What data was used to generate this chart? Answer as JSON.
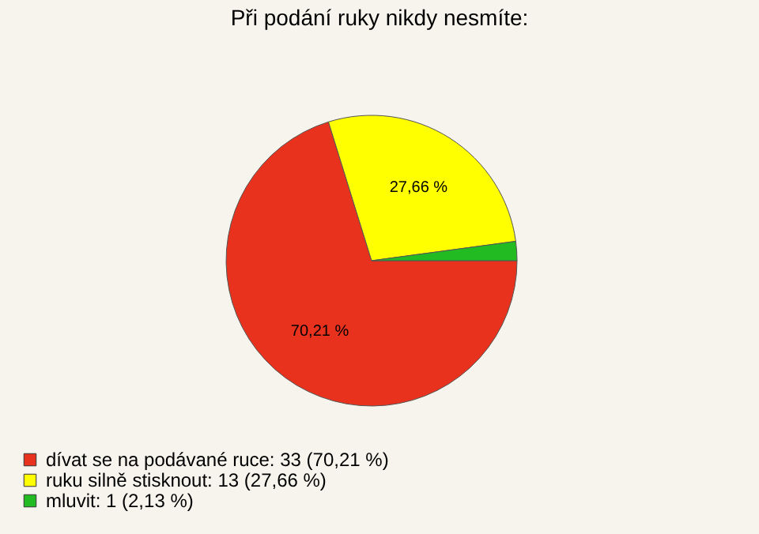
{
  "chart_data": {
    "type": "pie",
    "title": "Při podání ruky nikdy nesmíte:",
    "categories": [
      "dívat se na podávané ruce: 33 (70,21 %)",
      "ruku silně stisknout: 13 (27,66 %)",
      "mluvit: 1 (2,13 %)"
    ],
    "values": [
      70.21,
      27.66,
      2.13
    ],
    "colors": [
      "#e8321e",
      "#ffff00",
      "#22bb22"
    ],
    "value_labels": [
      "70,21 %",
      "27,66 %",
      null
    ],
    "legend": "bottom left"
  }
}
